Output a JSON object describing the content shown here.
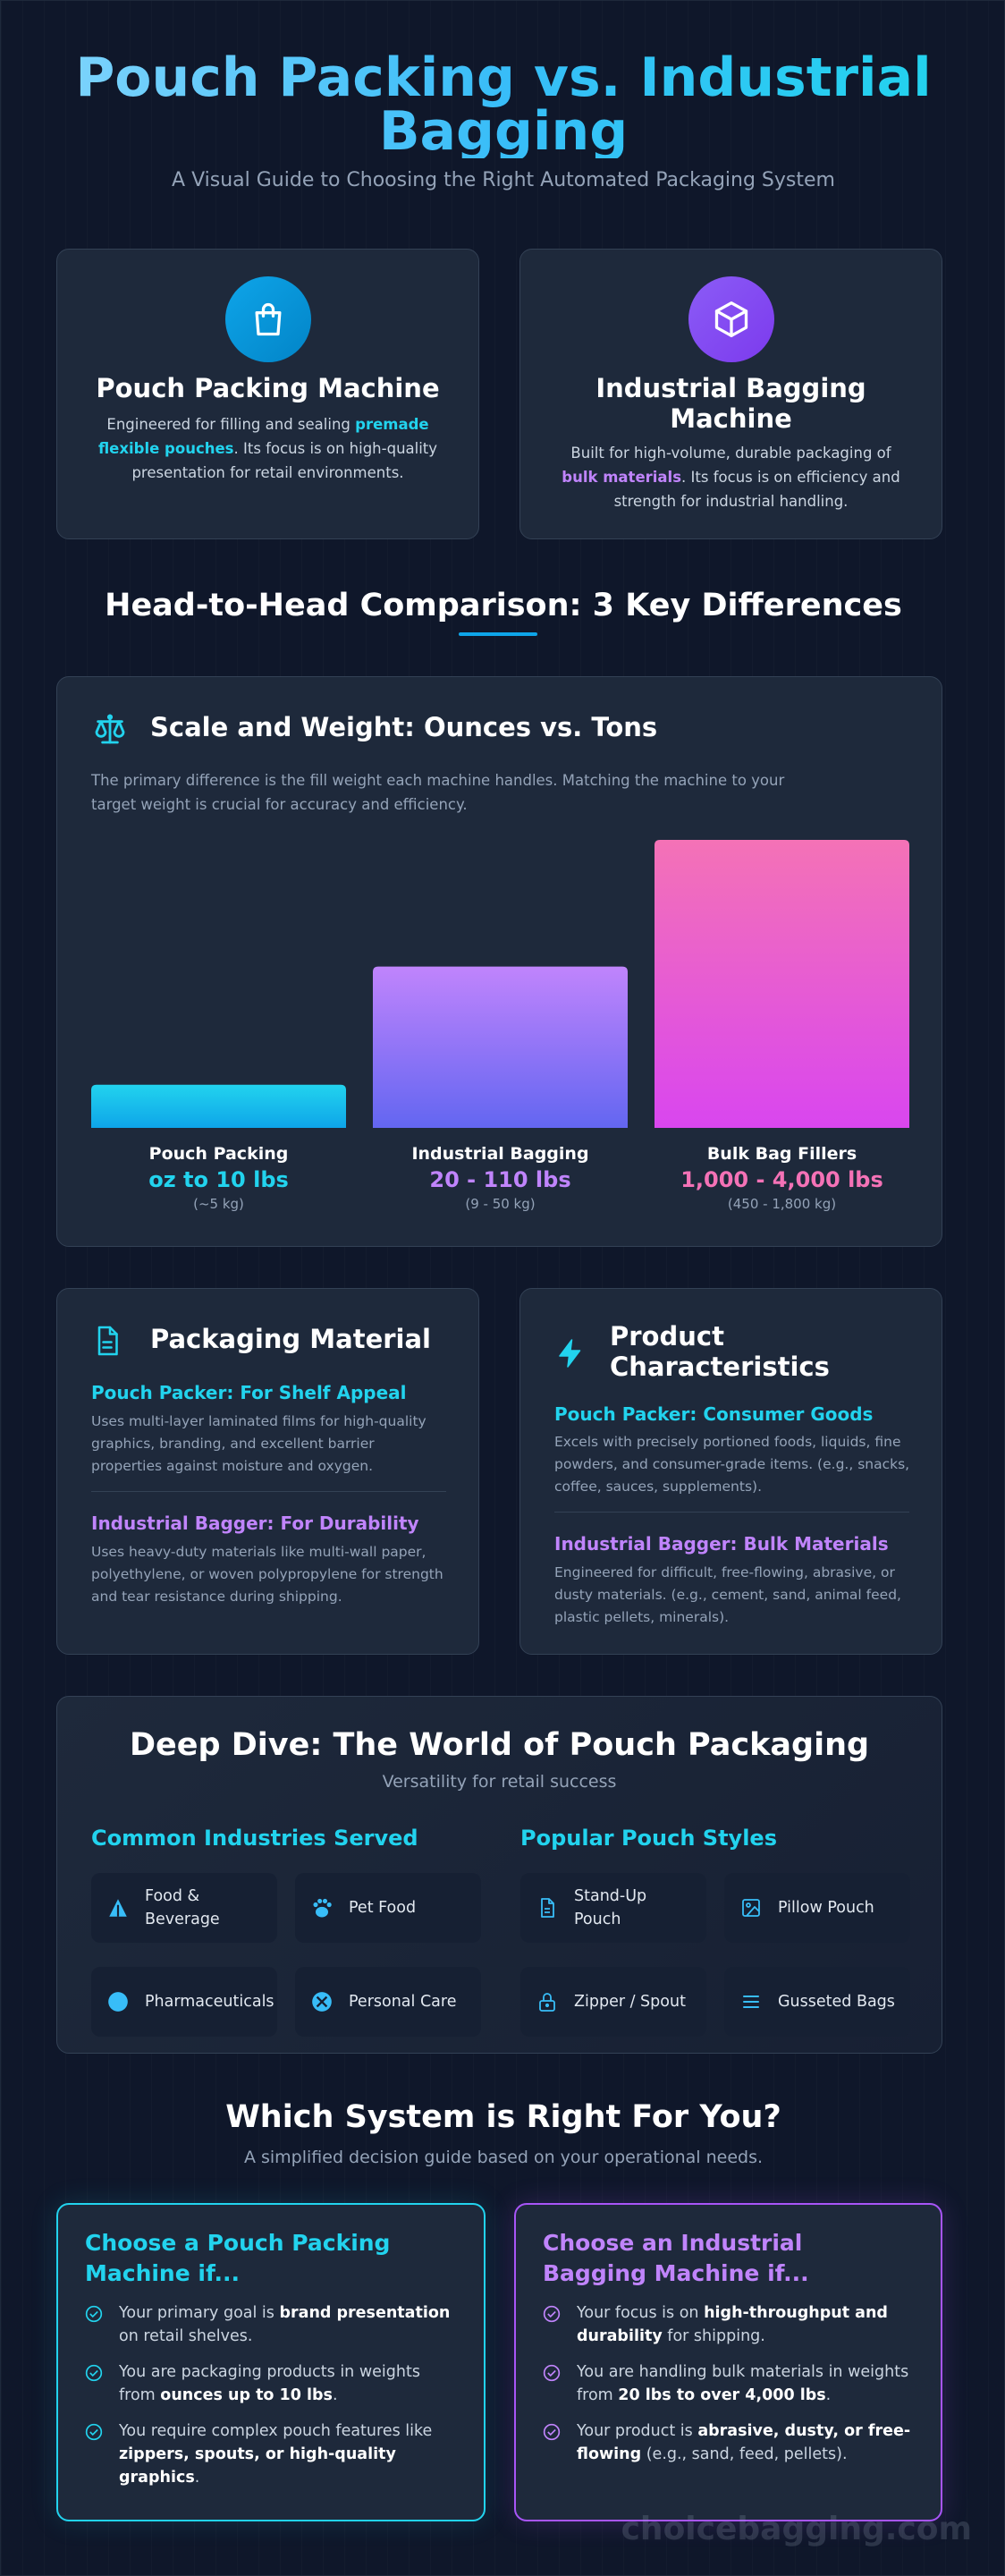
{
  "hero": {
    "title": "Pouch Packing vs. Industrial Bagging",
    "subtitle": "A Visual Guide to Choosing the Right Automated Packaging System"
  },
  "intro_cards": [
    {
      "icon": "shopping-bag-icon",
      "title": "Pouch Packing Machine",
      "text_before": "Engineered for filling and sealing ",
      "highlight": "premade flexible pouches",
      "text_after": ". Its focus is on high-quality presentation for retail environments."
    },
    {
      "icon": "box-cube-icon",
      "title": "Industrial Bagging Machine",
      "text_before": "Built for high-volume, durable packaging of ",
      "highlight": "bulk materials",
      "text_after": ". Its focus is on efficiency and strength for industrial handling."
    }
  ],
  "comparison": {
    "title": "Head-to-Head Comparison: 3 Key Differences"
  },
  "scale_card": {
    "icon": "scale-icon",
    "title": "Scale and Weight: Ounces vs. Tons",
    "text": "The primary difference is the fill weight each machine handles. Matching the machine to your target weight is crucial for accuracy and efficiency."
  },
  "chart_data": {
    "type": "bar",
    "title": "",
    "categories": [
      "Pouch Packing",
      "Industrial Bagging",
      "Bulk Bag Fillers"
    ],
    "values": [
      15,
      56,
      100
    ],
    "value_labels": [
      "oz to 10 lbs",
      "20 - 110 lbs",
      "1,000 - 4,000 lbs"
    ],
    "sub_labels": [
      "(~5 kg)",
      "(9 - 50 kg)",
      "(450 - 1,800 kg)"
    ],
    "value_note": "relative bar heights (no axis shown)",
    "colors": [
      "#0ea5e9",
      "#8b5cf6",
      "#ec4899"
    ],
    "ylim": [
      0,
      100
    ],
    "grid": false
  },
  "material_card": {
    "icon": "document-icon",
    "title": "Packaging Material",
    "pouch_head": "Pouch Packer: For Shelf Appeal",
    "pouch_text": "Uses multi-layer laminated films for high-quality graphics, branding, and excellent barrier properties against moisture and oxygen.",
    "bagger_head": "Industrial Bagger: For Durability",
    "bagger_text": "Uses heavy-duty materials like multi-wall paper, polyethylene, or woven polypropylene for strength and tear resistance during shipping."
  },
  "product_card": {
    "icon": "lightning-icon",
    "title": "Product Characteristics",
    "pouch_head": "Pouch Packer: Consumer Goods",
    "pouch_text": "Excels with precisely portioned foods, liquids, fine powders, and consumer-grade items. (e.g., snacks, coffee, sauces, supplements).",
    "bagger_head": "Industrial Bagger: Bulk Materials",
    "bagger_text": "Engineered for difficult, free-flowing, abrasive, or dusty materials. (e.g., cement, sand, animal feed, plastic pellets, minerals)."
  },
  "deep_dive": {
    "title": "Deep Dive: The World of Pouch Packaging",
    "subtitle": "Versatility for retail success",
    "industries_title": "Common Industries Served",
    "industries": [
      {
        "icon": "wheat-icon",
        "label": "Food & Beverage"
      },
      {
        "icon": "paw-icon",
        "label": "Pet Food"
      },
      {
        "icon": "pill-icon",
        "label": "Pharmaceuticals"
      },
      {
        "icon": "sparkle-icon",
        "label": "Personal Care"
      }
    ],
    "styles_title": "Popular Pouch Styles",
    "styles": [
      {
        "icon": "document-icon",
        "label": "Stand-Up Pouch"
      },
      {
        "icon": "image-icon",
        "label": "Pillow Pouch"
      },
      {
        "icon": "lock-icon",
        "label": "Zipper / Spout"
      },
      {
        "icon": "list-icon",
        "label": "Gusseted Bags"
      }
    ]
  },
  "decision": {
    "title": "Which System is Right For You?",
    "subtitle": "A simplified decision guide based on your operational needs.",
    "pouch": {
      "title": "Choose a Pouch Packing Machine if...",
      "items": [
        {
          "pre": "Your primary goal is ",
          "bold": "brand presentation",
          "post": " on retail shelves."
        },
        {
          "pre": "You are packaging products in weights from ",
          "bold": "ounces up to 10 lbs",
          "post": "."
        },
        {
          "pre": "You require complex pouch features like ",
          "bold": "zippers, spouts, or high-quality graphics",
          "post": "."
        }
      ]
    },
    "bagger": {
      "title": "Choose an Industrial Bagging Machine if...",
      "items": [
        {
          "pre": "Your focus is on ",
          "bold": "high-throughput and durability",
          "post": " for shipping."
        },
        {
          "pre": "You are handling bulk materials in weights from ",
          "bold": "20 lbs to over 4,000 lbs",
          "post": "."
        },
        {
          "pre": "Your product is ",
          "bold": "abrasive, dusty, or free-flowing",
          "post": " (e.g., sand, feed, pellets)."
        }
      ]
    }
  },
  "watermark": "choicebagging.com",
  "colors": {
    "accent_cyan": "#22d3ee",
    "accent_purple": "#c084fc",
    "accent_pink": "#f472b6",
    "card_bg": "#1e293b",
    "page_bg": "#0f172a"
  }
}
